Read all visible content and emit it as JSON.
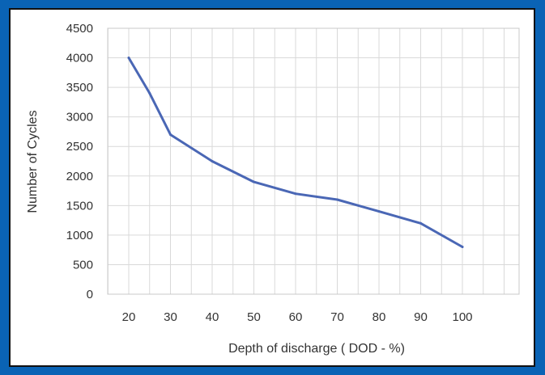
{
  "chart_data": {
    "type": "line",
    "title": "",
    "xlabel": "Depth of discharge ( DOD - %)",
    "ylabel": "Number of Cycles",
    "x": [
      20,
      25,
      30,
      40,
      50,
      60,
      70,
      80,
      90,
      100
    ],
    "series": [
      {
        "values": [
          4000,
          3400,
          2700,
          2250,
          1900,
          1700,
          1600,
          1400,
          1200,
          800
        ],
        "color": "#4a67b5"
      }
    ],
    "xticks": [
      "20",
      "30",
      "40",
      "50",
      "60",
      "70",
      "80",
      "90",
      "100"
    ],
    "yticks": [
      "0",
      "500",
      "1000",
      "1500",
      "2000",
      "2500",
      "3000",
      "3500",
      "4000",
      "4500"
    ],
    "ylim": [
      0,
      4500
    ],
    "grid": true,
    "legend": "none"
  }
}
